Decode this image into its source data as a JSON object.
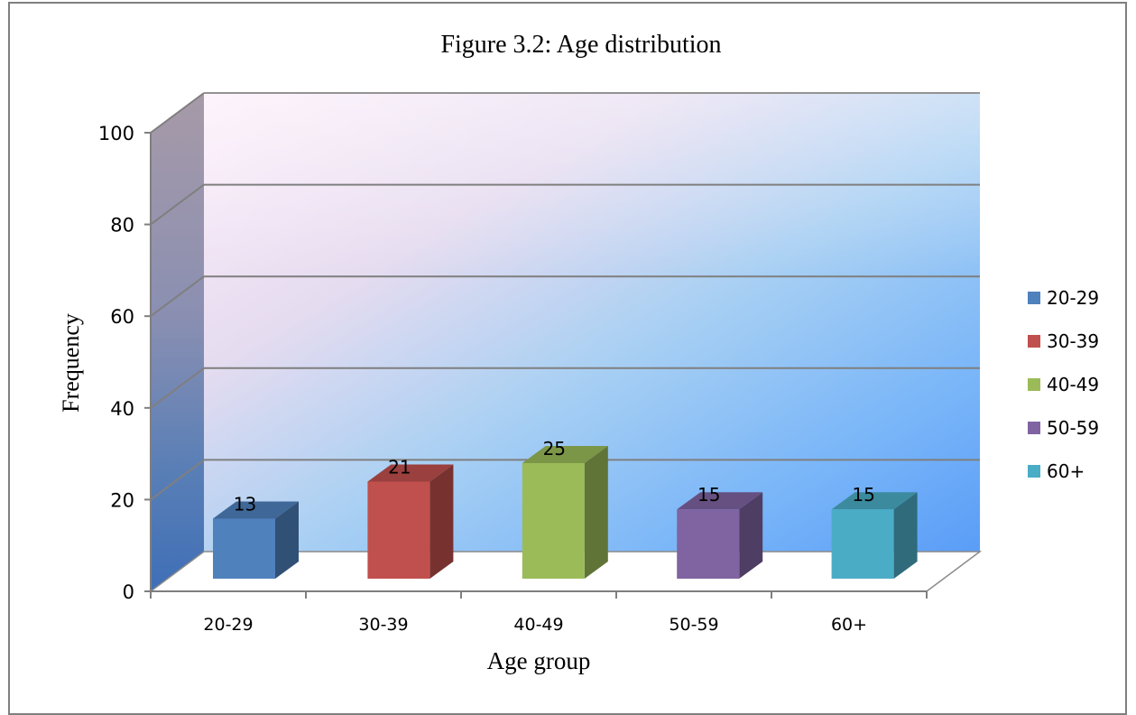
{
  "chart_data": {
    "type": "bar",
    "title": "Figure 3.2: Age distribution",
    "xlabel": "Age group",
    "ylabel": "Frequency",
    "categories": [
      "20-29",
      "30-39",
      "40-49",
      "50-59",
      "60+"
    ],
    "values": [
      13,
      21,
      25,
      15,
      15
    ],
    "data_labels": [
      "13",
      "21",
      "25",
      "15",
      "15"
    ],
    "yticks": [
      "0",
      "20",
      "40",
      "60",
      "80",
      "100"
    ],
    "ylim": [
      0,
      100
    ],
    "grid": true,
    "three_d": true,
    "legend": {
      "position": "right",
      "entries": [
        "20-29",
        "30-39",
        "40-49",
        "50-59",
        "60+"
      ]
    },
    "colors": [
      "#4f81bd",
      "#c0504d",
      "#9bbb59",
      "#8064a2",
      "#4bacc6"
    ]
  }
}
